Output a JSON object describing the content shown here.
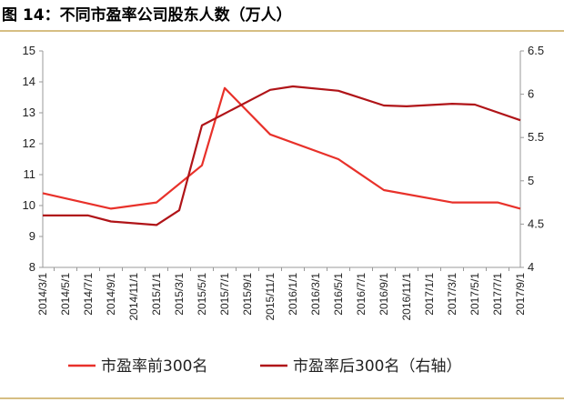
{
  "figure_title": "图 14：不同市盈率公司股东人数（万人）",
  "colors": {
    "rule": "#c8a85a",
    "series_front": "#e8312a",
    "series_back": "#b01418",
    "axis": "#999999"
  },
  "chart_data": {
    "type": "line",
    "x": [
      "2014/3/1",
      "2014/5/1",
      "2014/7/1",
      "2014/9/1",
      "2014/11/1",
      "2015/1/1",
      "2015/3/1",
      "2015/5/1",
      "2015/7/1",
      "2015/9/1",
      "2015/11/1",
      "2016/1/1",
      "2016/3/1",
      "2016/5/1",
      "2016/7/1",
      "2016/9/1",
      "2016/11/1",
      "2017/1/1",
      "2017/3/1",
      "2017/5/1",
      "2017/7/1",
      "2017/9/1"
    ],
    "left_axis": {
      "ylim": [
        8,
        15
      ],
      "ticks": [
        8,
        9,
        10,
        11,
        12,
        13,
        14,
        15
      ]
    },
    "right_axis": {
      "ylim": [
        4,
        6.5
      ],
      "ticks": [
        "4",
        "4.5",
        "5",
        "5.5",
        "6",
        "6.5"
      ]
    },
    "series": [
      {
        "name": "市盈率前300名",
        "axis": "left",
        "x": [
          "2014/3/1",
          "2014/9/1",
          "2015/1/1",
          "2015/5/1",
          "2015/7/1",
          "2015/11/1",
          "2016/5/1",
          "2016/9/1",
          "2017/3/1",
          "2017/7/1",
          "2017/9/1"
        ],
        "values": [
          10.4,
          9.9,
          10.1,
          11.3,
          13.8,
          12.3,
          11.5,
          10.5,
          10.1,
          10.1,
          9.9
        ]
      },
      {
        "name": "市盈率后300名（右轴）",
        "axis": "right",
        "x": [
          "2014/3/1",
          "2014/7/1",
          "2014/9/1",
          "2015/1/1",
          "2015/3/1",
          "2015/5/1",
          "2015/11/1",
          "2016/1/1",
          "2016/5/1",
          "2016/9/1",
          "2016/11/1",
          "2017/3/1",
          "2017/5/1",
          "2017/9/1"
        ],
        "values": [
          4.6,
          4.6,
          4.53,
          4.49,
          4.66,
          5.64,
          6.05,
          6.09,
          6.04,
          5.87,
          5.86,
          5.89,
          5.88,
          5.7
        ]
      }
    ]
  }
}
